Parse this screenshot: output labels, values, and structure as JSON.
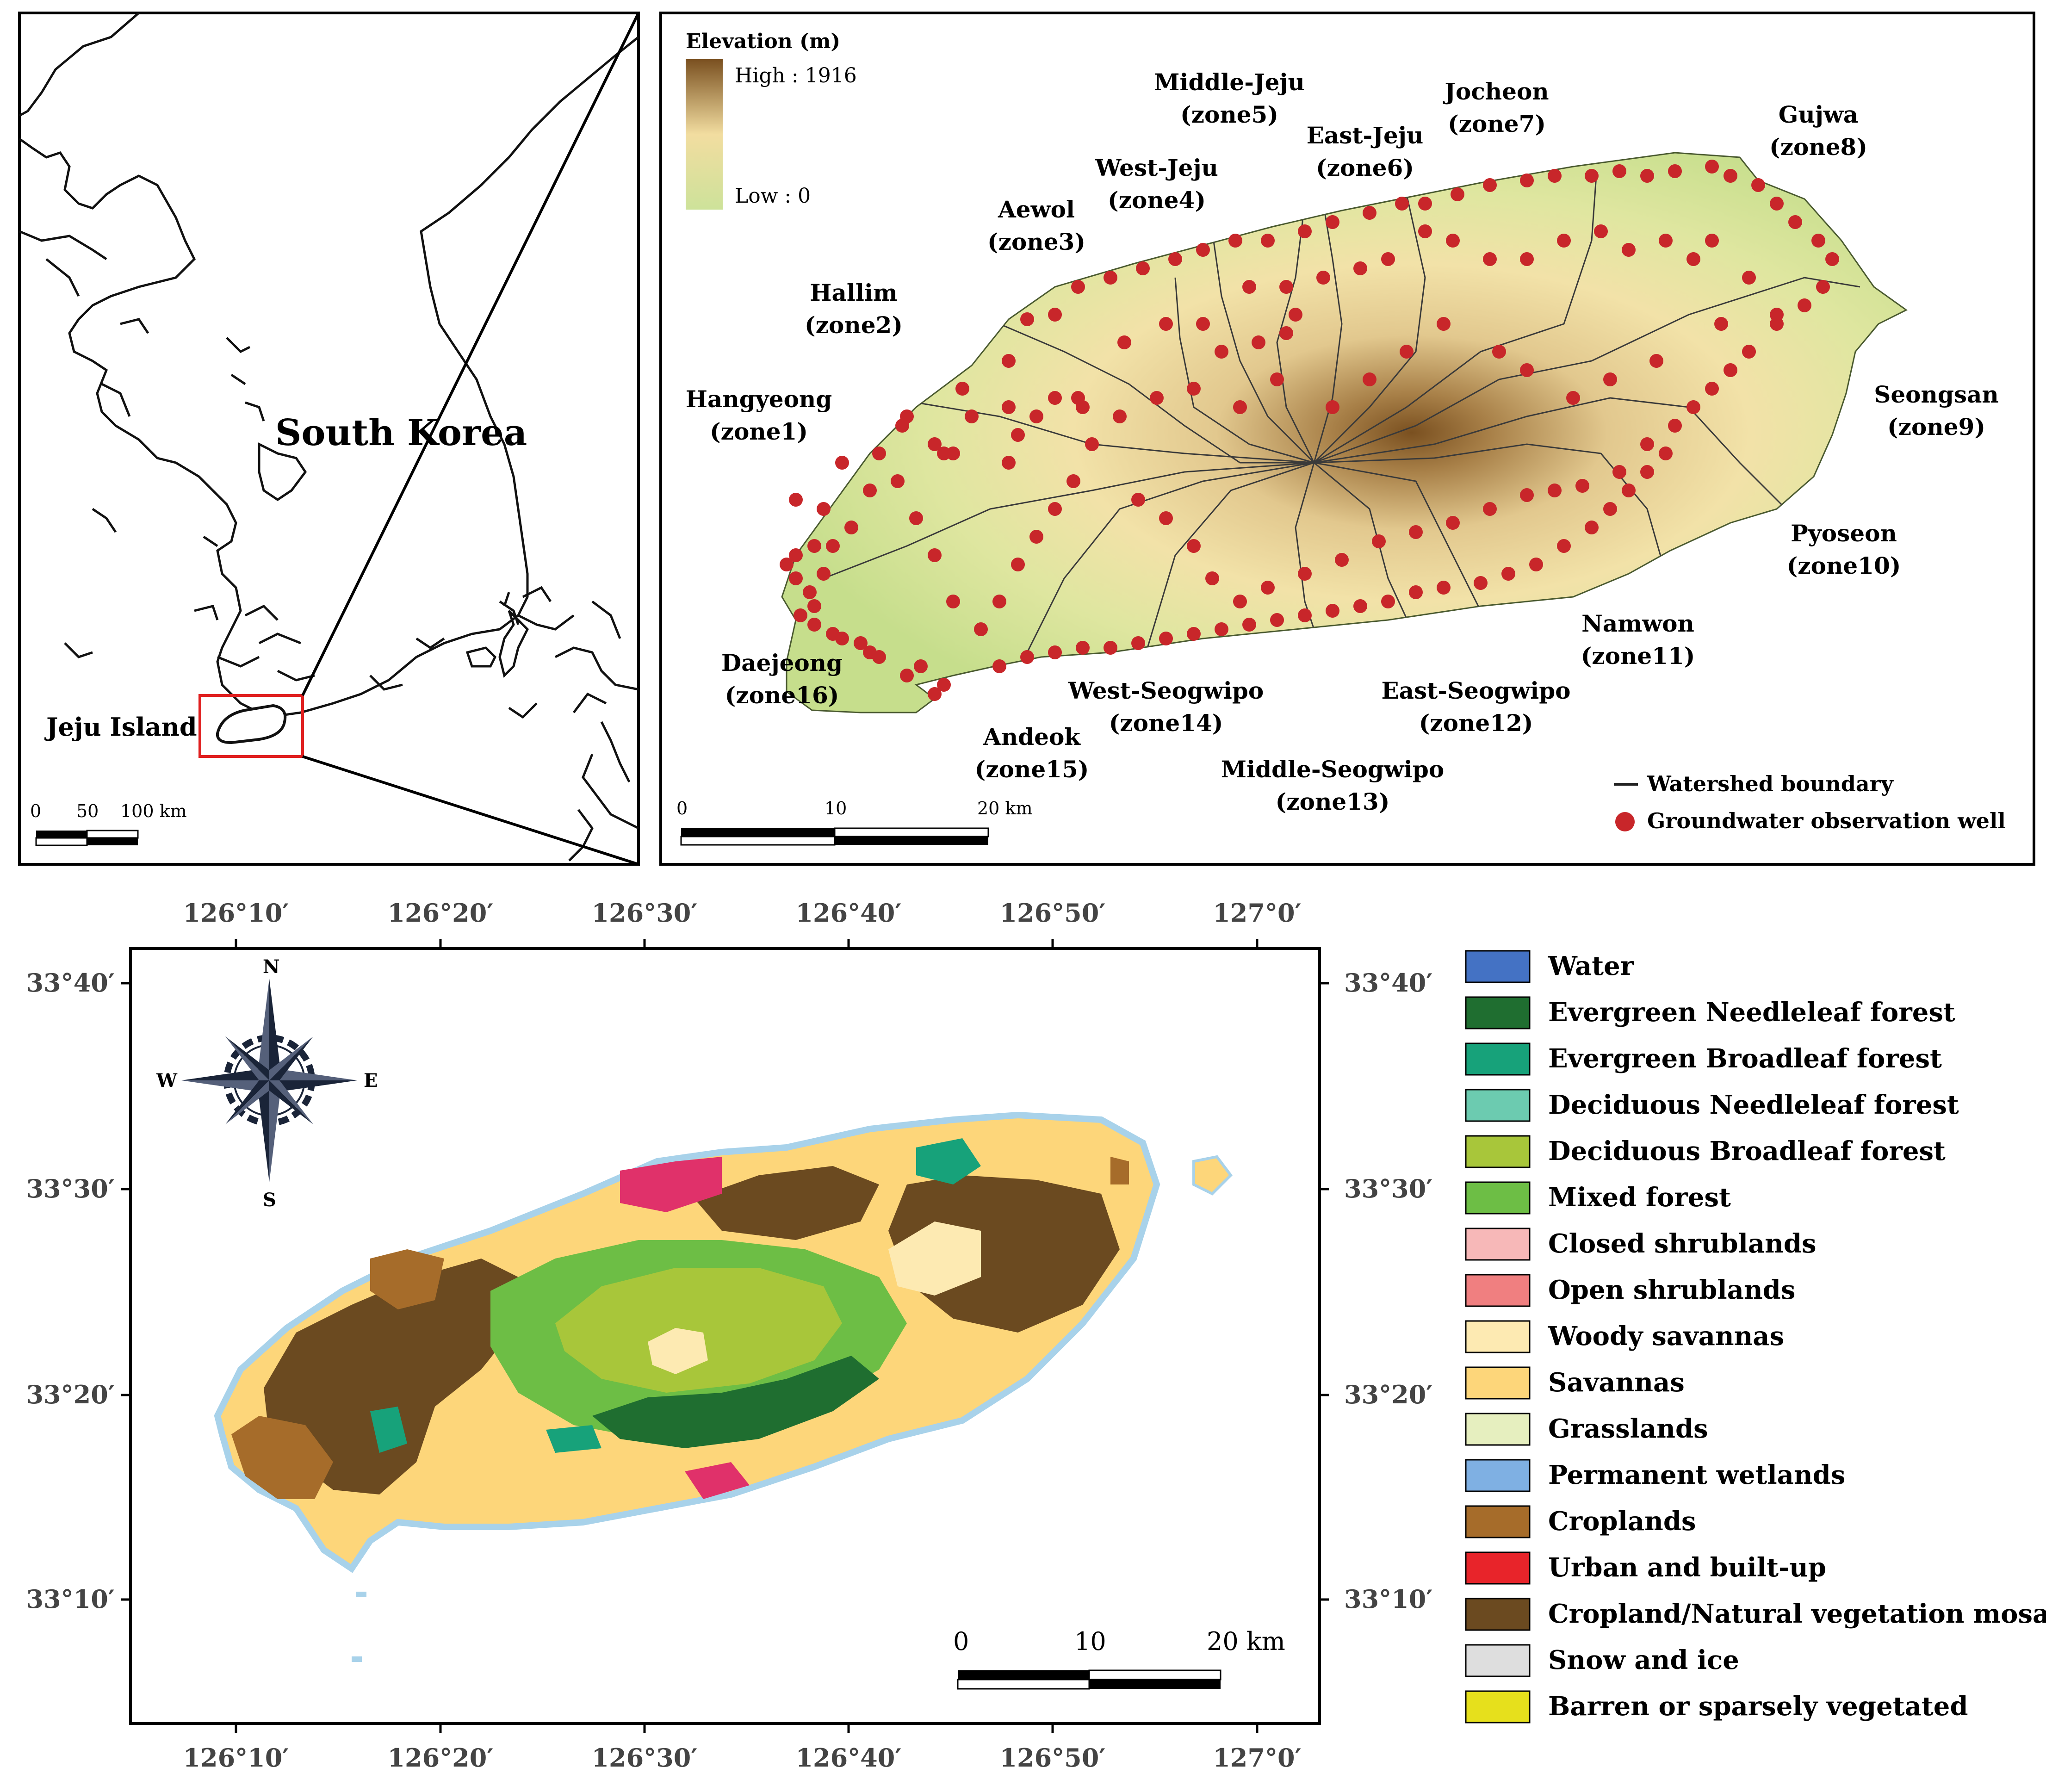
{
  "top_left_map": {
    "country_label": "South Korea",
    "island_label": "Jeju Island",
    "scale_ticks": [
      "0",
      "50",
      "100 km"
    ]
  },
  "top_right_map": {
    "legend_title": "Elevation (m)",
    "high_label": "High : 1916",
    "low_label": "Low : 0",
    "elevation_colors": {
      "high": "#7a5020",
      "mid": "#f2dda0",
      "low": "#cde29a"
    },
    "zones": [
      {
        "name": "Hangyeong",
        "zone": "(zone1)"
      },
      {
        "name": "Hallim",
        "zone": "(zone2)"
      },
      {
        "name": "Aewol",
        "zone": "(zone3)"
      },
      {
        "name": "West-Jeju",
        "zone": "(zone4)"
      },
      {
        "name": "Middle-Jeju",
        "zone": "(zone5)"
      },
      {
        "name": "East-Jeju",
        "zone": "(zone6)"
      },
      {
        "name": "Jocheon",
        "zone": "(zone7)"
      },
      {
        "name": "Gujwa",
        "zone": "(zone8)"
      },
      {
        "name": "Seongsan",
        "zone": "(zone9)"
      },
      {
        "name": "Pyoseon",
        "zone": "(zone10)"
      },
      {
        "name": "Namwon",
        "zone": "(zone11)"
      },
      {
        "name": "East-Seogwipo",
        "zone": "(zone12)"
      },
      {
        "name": "Middle-Seogwipo",
        "zone": "(zone13)"
      },
      {
        "name": "West-Seogwipo",
        "zone": "(zone14)"
      },
      {
        "name": "Andeok",
        "zone": "(zone15)"
      },
      {
        "name": "Daejeong",
        "zone": "(zone16)"
      }
    ],
    "legend_boundary": "Watershed boundary",
    "legend_well": "Groundwater observation well",
    "well_color": "#c8262a",
    "scale_ticks": [
      "0",
      "10",
      "20 km"
    ]
  },
  "bottom_map": {
    "lon_ticks": [
      "126°10′",
      "126°20′",
      "126°30′",
      "126°40′",
      "126°50′",
      "127°0′"
    ],
    "lat_ticks": [
      "33°40′",
      "33°30′",
      "33°20′",
      "33°10′"
    ],
    "compass": {
      "n": "N",
      "s": "S",
      "e": "E",
      "w": "W"
    },
    "scale_ticks": [
      "0",
      "10",
      "20 km"
    ]
  },
  "landcover_legend": [
    {
      "label": "Water",
      "color": "#4472c4"
    },
    {
      "label": "Evergreen Needleleaf forest",
      "color": "#1f6e30"
    },
    {
      "label": "Evergreen Broadleaf forest",
      "color": "#17a27a"
    },
    {
      "label": "Deciduous Needleleaf forest",
      "color": "#6ccbb0"
    },
    {
      "label": "Deciduous Broadleaf forest",
      "color": "#a8c63a"
    },
    {
      "label": "Mixed forest",
      "color": "#6dbe45"
    },
    {
      "label": "Closed shrublands",
      "color": "#f7b8b8"
    },
    {
      "label": "Open shrublands",
      "color": "#f07f80"
    },
    {
      "label": "Woody savannas",
      "color": "#fdeab2"
    },
    {
      "label": "Savannas",
      "color": "#fdd67a"
    },
    {
      "label": "Grasslands",
      "color": "#e6efbf"
    },
    {
      "label": "Permanent wetlands",
      "color": "#7fb0e3"
    },
    {
      "label": "Croplands",
      "color": "#a66c2a"
    },
    {
      "label": "Urban and built-up",
      "color": "#e8242a"
    },
    {
      "label": "Cropland/Natural vegetation mosaic",
      "color": "#6b4a20"
    },
    {
      "label": "Snow and ice",
      "color": "#dedede"
    },
    {
      "label": "Barren or sparsely vegetated",
      "color": "#e6e01c"
    }
  ]
}
